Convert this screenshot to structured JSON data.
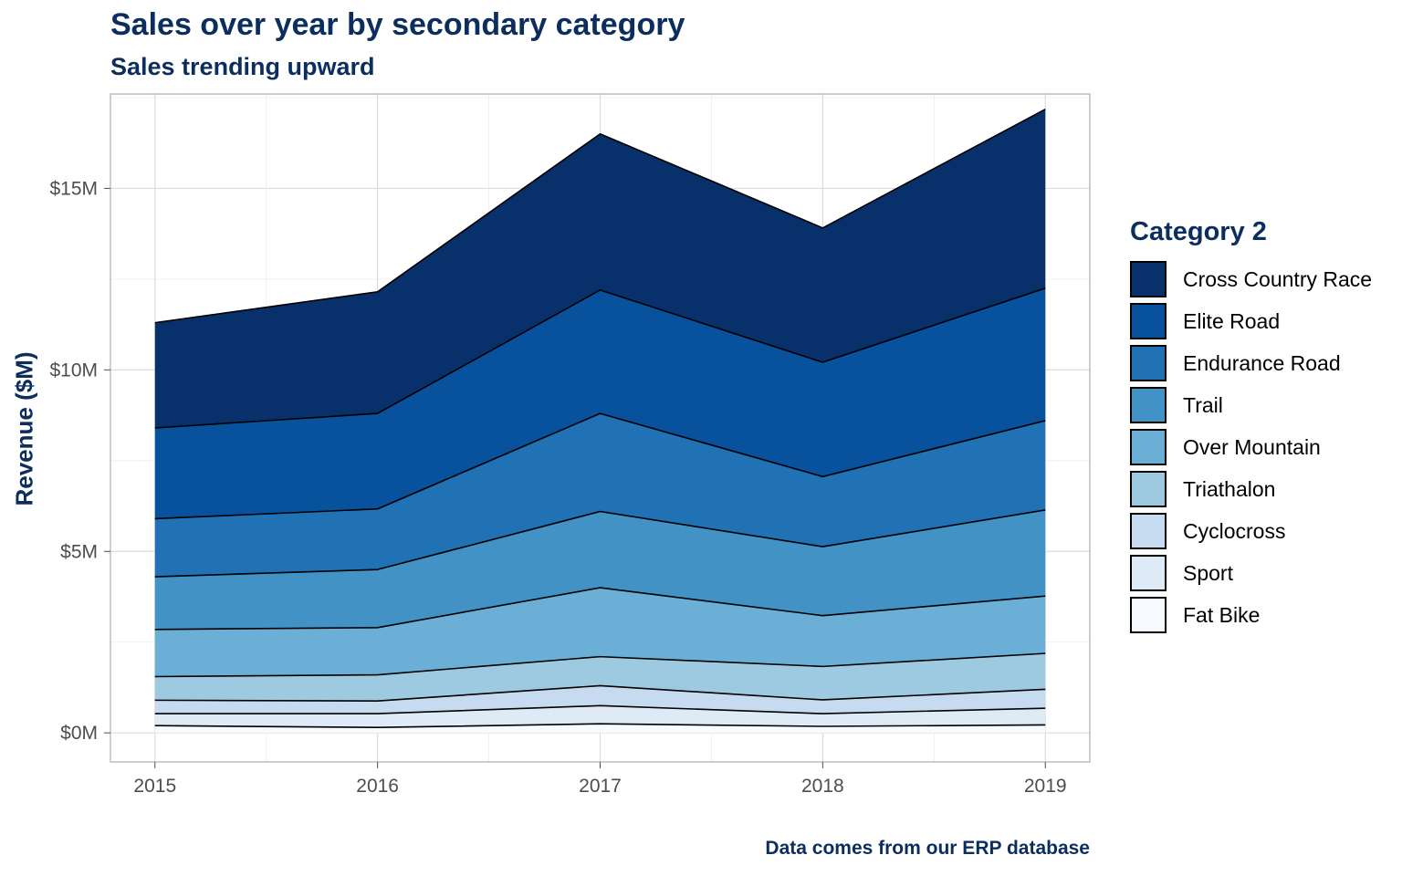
{
  "chart_data": {
    "type": "area",
    "title": "Sales over year by secondary category",
    "subtitle": "Sales trending upward",
    "xlabel": "",
    "ylabel": "Revenue ($M)",
    "caption": "Data comes from our ERP database",
    "legend_title": "Category 2",
    "legend_position": "right",
    "stacked": true,
    "grid": true,
    "x": [
      2015,
      2016,
      2017,
      2018,
      2019
    ],
    "xlim": [
      2014.8,
      2019.2
    ],
    "ylim": [
      -0.8,
      17.6
    ],
    "y_ticks": [
      0,
      5,
      10,
      15
    ],
    "y_tick_labels": [
      "$0M",
      "$5M",
      "$10M",
      "$15M"
    ],
    "x_tick_labels": [
      "2015",
      "2016",
      "2017",
      "2018",
      "2019"
    ],
    "series": [
      {
        "name": "Fat Bike",
        "color": "#f7fbff",
        "values": [
          0.2,
          0.15,
          0.25,
          0.18,
          0.22
        ]
      },
      {
        "name": "Sport",
        "color": "#deebf7",
        "values": [
          0.33,
          0.38,
          0.5,
          0.35,
          0.46
        ]
      },
      {
        "name": "Cyclocross",
        "color": "#c6dbef",
        "values": [
          0.37,
          0.35,
          0.55,
          0.38,
          0.52
        ]
      },
      {
        "name": "Triathalon",
        "color": "#9ecae1",
        "values": [
          0.65,
          0.72,
          0.8,
          0.92,
          0.99
        ]
      },
      {
        "name": "Over Mountain",
        "color": "#6baed6",
        "values": [
          1.3,
          1.3,
          1.9,
          1.4,
          1.58
        ]
      },
      {
        "name": "Trail",
        "color": "#4292c6",
        "values": [
          1.45,
          1.6,
          2.1,
          1.9,
          2.37
        ]
      },
      {
        "name": "Endurance Road",
        "color": "#2171b5",
        "values": [
          1.6,
          1.67,
          2.7,
          1.93,
          2.46
        ]
      },
      {
        "name": "Elite Road",
        "color": "#08519c",
        "values": [
          2.5,
          2.63,
          3.4,
          3.15,
          3.65
        ]
      },
      {
        "name": "Cross Country Race",
        "color": "#08306b",
        "values": [
          2.9,
          3.35,
          4.3,
          3.7,
          4.93
        ]
      }
    ]
  }
}
